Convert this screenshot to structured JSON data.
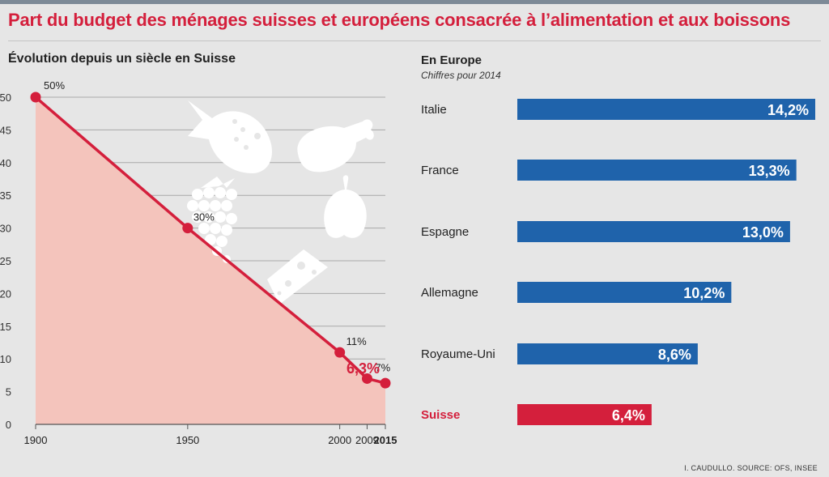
{
  "title": "Part du budget des ménages suisses et européens consacrée à l’alimentation et aux boissons",
  "left_panel": {
    "subtitle": "Évolution depuis un siècle en Suisse"
  },
  "right_panel": {
    "subtitle": "En Europe",
    "note": "Chiffres pour 2014"
  },
  "source": "I. CAUDULLO. SOURCE: OFS, INSEE",
  "colors": {
    "accent_red": "#d41f3c",
    "bar_blue": "#1f63ab",
    "area_fill": "#f4c4bc",
    "background": "#e6e6e6"
  },
  "chart_data": [
    {
      "type": "line",
      "title": "Évolution depuis un siècle en Suisse",
      "x": [
        "1900",
        "1950",
        "2000",
        "2009",
        "2015"
      ],
      "values": [
        50,
        30,
        11,
        7,
        6.3
      ],
      "point_labels": [
        "50%",
        "30%",
        "11%",
        "7%",
        "6,3%"
      ],
      "yticks": [
        0,
        5,
        10,
        15,
        20,
        25,
        30,
        35,
        40,
        45,
        50
      ],
      "ylim": [
        0,
        50
      ],
      "grid": true,
      "area_fill": true
    },
    {
      "type": "bar",
      "orientation": "horizontal",
      "title": "En Europe",
      "subtitle": "Chiffres pour 2014",
      "categories": [
        "Italie",
        "France",
        "Espagne",
        "Allemagne",
        "Royaume-Uni",
        "Suisse"
      ],
      "values": [
        14.2,
        13.3,
        13.0,
        10.2,
        8.6,
        6.4
      ],
      "value_labels": [
        "14,2%",
        "13,3%",
        "13,0%",
        "10,2%",
        "8,6%",
        "6,4%"
      ],
      "highlight": "Suisse"
    }
  ]
}
